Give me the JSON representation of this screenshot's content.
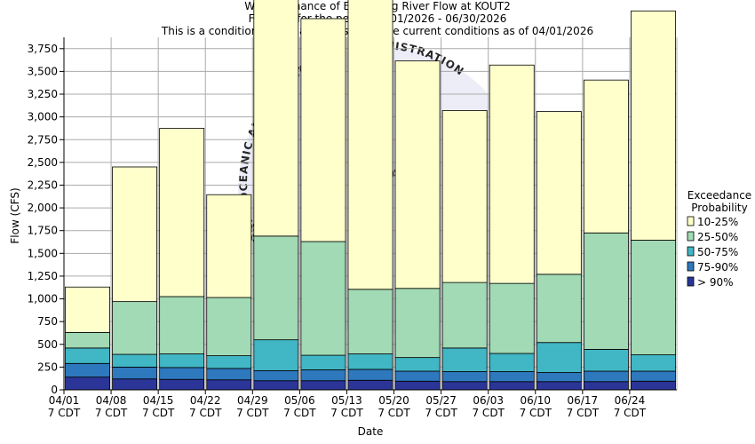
{
  "titles": {
    "line1": "Weekly Chance of Exceeding River Flow at KOUT2",
    "line2": "Forecast for the period 04/01/2026 - 06/30/2026",
    "line3": "This is a conditional simulation based on the current conditions as of 04/01/2026"
  },
  "watermark": {
    "text": "NATIONAL OCEANIC AND ATMOSPHERIC ADMINISTRATION",
    "logo": "NOAA"
  },
  "chart_data": {
    "type": "bar",
    "title": "Weekly Chance of Exceeding River Flow at KOUT2",
    "subtitle": "Forecast for the period 04/01/2026 - 06/30/2026",
    "xlabel": "Date",
    "ylabel": "Flow (CFS)",
    "ylim": [
      0,
      3875
    ],
    "yticks": [
      0,
      250,
      500,
      750,
      1000,
      1250,
      1500,
      1750,
      2000,
      2250,
      2500,
      2750,
      3000,
      3250,
      3500,
      3750
    ],
    "ytick_labels": [
      "0",
      "250",
      "500",
      "750",
      "1,000",
      "1,250",
      "1,500",
      "1,750",
      "2,000",
      "2,250",
      "2,500",
      "2,750",
      "3,000",
      "3,250",
      "3,500",
      "3,750"
    ],
    "categories": [
      "04/01",
      "04/08",
      "04/15",
      "04/22",
      "04/29",
      "05/06",
      "05/13",
      "05/20",
      "05/27",
      "06/03",
      "06/10",
      "06/17",
      "06/24"
    ],
    "category_sub": "7 CDT",
    "legend_title": [
      "Exceedance",
      "Probability"
    ],
    "legend_position": "right",
    "grid": true,
    "series": [
      {
        "name": "> 90%",
        "color": "#2b3598",
        "values": [
          140,
          120,
          115,
          110,
          100,
          100,
          105,
          95,
          90,
          90,
          90,
          90,
          95
        ]
      },
      {
        "name": "75-90%",
        "color": "#2e78bd",
        "values": [
          150,
          130,
          130,
          125,
          110,
          120,
          120,
          110,
          110,
          110,
          100,
          115,
          110
        ]
      },
      {
        "name": "50-75%",
        "color": "#41b6c4",
        "values": [
          170,
          140,
          150,
          140,
          340,
          160,
          170,
          150,
          260,
          200,
          330,
          240,
          180
        ]
      },
      {
        "name": "25-50%",
        "color": "#a1dab4",
        "values": [
          170,
          580,
          630,
          640,
          1140,
          1250,
          710,
          760,
          720,
          770,
          750,
          1280,
          1260
        ]
      },
      {
        "name": "10-25%",
        "color": "#ffffcc",
        "values": [
          500,
          1480,
          1850,
          1130,
          2790,
          2450,
          3640,
          2500,
          1890,
          2400,
          1790,
          1680,
          2520
        ]
      }
    ]
  }
}
